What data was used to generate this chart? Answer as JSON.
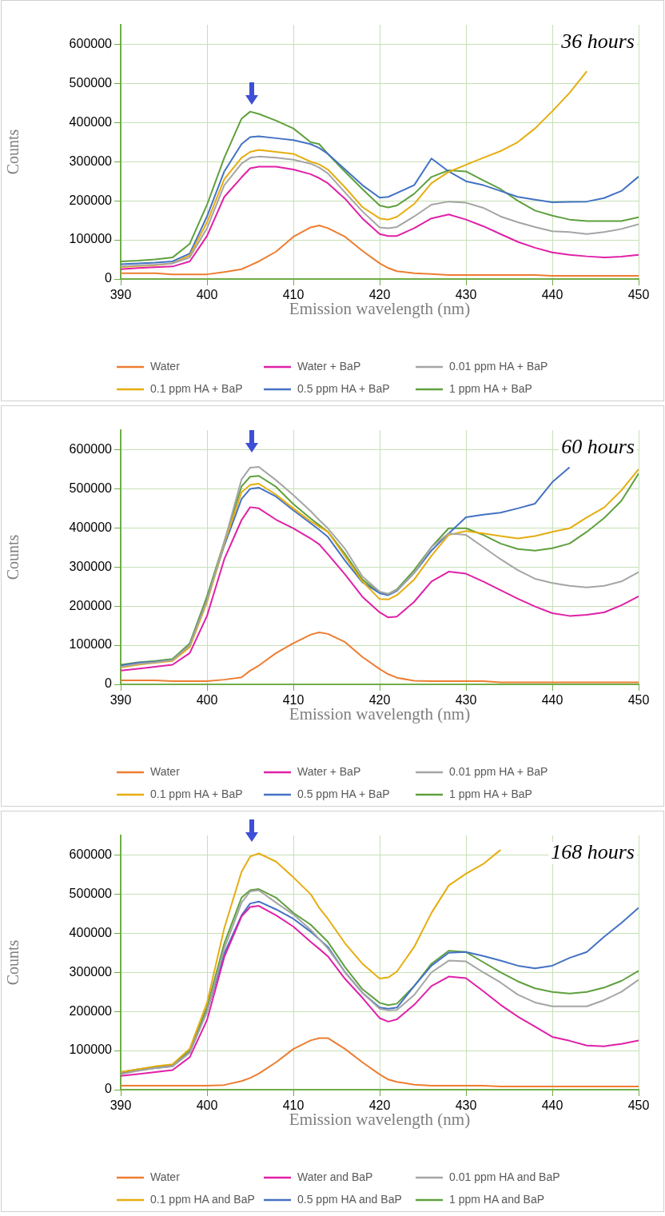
{
  "chart_data": [
    {
      "type": "line",
      "title": "36 hours",
      "xlabel": "Emission wavelength (nm)",
      "ylabel": "Counts",
      "xlim": [
        390,
        450
      ],
      "xticks": [
        390,
        400,
        410,
        420,
        430,
        440,
        450
      ],
      "ylim": [
        0,
        650000
      ],
      "yticks": [
        0,
        100000,
        200000,
        300000,
        400000,
        500000,
        600000
      ],
      "grid": true,
      "legend": "bottom",
      "x": [
        390,
        392,
        394,
        396,
        398,
        400,
        402,
        404,
        405,
        406,
        408,
        410,
        412,
        413,
        414,
        416,
        418,
        420,
        421,
        422,
        424,
        426,
        428,
        430,
        432,
        434,
        436,
        438,
        440,
        442,
        444,
        446,
        448,
        450
      ],
      "series": [
        {
          "name": "Water",
          "color": "#ed7d31",
          "values": [
            15000,
            15000,
            15000,
            12000,
            12000,
            12000,
            18000,
            25000,
            35000,
            45000,
            70000,
            108000,
            132000,
            137000,
            130000,
            108000,
            72000,
            40000,
            28000,
            20000,
            15000,
            13000,
            10000,
            10000,
            10000,
            10000,
            10000,
            10000,
            8000,
            8000,
            8000,
            8000,
            8000,
            8000
          ]
        },
        {
          "name": "Water + BaP",
          "color": "#e020a8",
          "values": [
            25000,
            28000,
            30000,
            32000,
            45000,
            110000,
            210000,
            260000,
            283000,
            287000,
            287000,
            280000,
            268000,
            258000,
            245000,
            205000,
            155000,
            115000,
            110000,
            110000,
            130000,
            155000,
            165000,
            152000,
            135000,
            115000,
            95000,
            80000,
            68000,
            62000,
            58000,
            55000,
            57000,
            62000
          ]
        },
        {
          "name": "0.01 ppm HA + BaP",
          "color": "#a5a5a5",
          "values": [
            32000,
            35000,
            37000,
            40000,
            55000,
            130000,
            240000,
            295000,
            310000,
            313000,
            310000,
            305000,
            295000,
            285000,
            270000,
            221000,
            173000,
            132000,
            130000,
            133000,
            160000,
            190000,
            198000,
            195000,
            182000,
            160000,
            145000,
            133000,
            122000,
            120000,
            115000,
            120000,
            128000,
            140000
          ]
        },
        {
          "name": "0.1 ppm HA + BaP",
          "color": "#e6ad10",
          "values": [
            30000,
            33000,
            35000,
            40000,
            60000,
            145000,
            255000,
            310000,
            325000,
            330000,
            325000,
            320000,
            300000,
            293000,
            280000,
            234000,
            184000,
            155000,
            152000,
            159000,
            192000,
            245000,
            274000,
            292000,
            310000,
            327000,
            350000,
            385000,
            429000,
            476000,
            531000,
            null,
            null,
            null
          ]
        },
        {
          "name": "0.5 ppm HA + BaP",
          "color": "#4472c4",
          "values": [
            38000,
            40000,
            42000,
            45000,
            65000,
            160000,
            275000,
            345000,
            363000,
            365000,
            360000,
            355000,
            345000,
            335000,
            320000,
            280000,
            240000,
            208000,
            210000,
            220000,
            240000,
            308000,
            275000,
            250000,
            240000,
            225000,
            210000,
            203000,
            196000,
            197000,
            198000,
            207000,
            225000,
            262000
          ]
        },
        {
          "name": "1 ppm HA + BaP",
          "color": "#5fa03e",
          "values": [
            45000,
            47000,
            50000,
            55000,
            90000,
            190000,
            310000,
            410000,
            428000,
            422000,
            405000,
            385000,
            350000,
            345000,
            320000,
            274000,
            230000,
            188000,
            183000,
            188000,
            218000,
            261000,
            278000,
            275000,
            252000,
            230000,
            200000,
            175000,
            162000,
            152000,
            148000,
            148000,
            148000,
            158000
          ]
        }
      ]
    },
    {
      "type": "line",
      "title": "60 hours",
      "xlabel": "Emission wavelength (nm)",
      "ylabel": "Counts",
      "xlim": [
        390,
        450
      ],
      "xticks": [
        390,
        400,
        410,
        420,
        430,
        440,
        450
      ],
      "ylim": [
        0,
        650000
      ],
      "yticks": [
        0,
        100000,
        200000,
        300000,
        400000,
        500000,
        600000
      ],
      "grid": true,
      "legend": "bottom",
      "x": [
        390,
        392,
        394,
        396,
        398,
        400,
        402,
        404,
        405,
        406,
        408,
        410,
        412,
        413,
        414,
        416,
        418,
        420,
        421,
        422,
        424,
        426,
        428,
        430,
        432,
        434,
        436,
        438,
        440,
        442,
        444,
        446,
        448,
        450
      ],
      "series": [
        {
          "name": "Water",
          "color": "#ed7d31",
          "values": [
            10000,
            10000,
            10000,
            8000,
            8000,
            8000,
            12000,
            18000,
            35000,
            48000,
            80000,
            105000,
            127000,
            133000,
            129000,
            108000,
            70000,
            39000,
            26000,
            17000,
            9000,
            8000,
            8000,
            8000,
            8000,
            5000,
            5000,
            5000,
            5000,
            5000,
            5000,
            5000,
            5000,
            5000
          ]
        },
        {
          "name": "Water + BaP",
          "color": "#e020a8",
          "values": [
            35000,
            40000,
            45000,
            50000,
            80000,
            175000,
            320000,
            420000,
            453000,
            450000,
            421000,
            399000,
            373000,
            358000,
            333000,
            281000,
            224000,
            184000,
            171000,
            173000,
            211000,
            263000,
            288000,
            283000,
            263000,
            241000,
            219000,
            199000,
            182000,
            175000,
            178000,
            184000,
            202000,
            225000
          ]
        },
        {
          "name": "0.01 ppm HA + BaP",
          "color": "#a5a5a5",
          "values": [
            45000,
            52000,
            56000,
            62000,
            100000,
            215000,
            364000,
            524000,
            554000,
            556000,
            522000,
            484000,
            443000,
            420000,
            399000,
            346000,
            276000,
            237000,
            231000,
            241000,
            285000,
            351000,
            386000,
            382000,
            351000,
            320000,
            292000,
            270000,
            259000,
            252000,
            248000,
            252000,
            263000,
            287000
          ]
        },
        {
          "name": "0.1 ppm HA + BaP",
          "color": "#e6ad10",
          "values": [
            43000,
            50000,
            55000,
            60000,
            95000,
            210000,
            360000,
            491000,
            510000,
            513000,
            485000,
            450000,
            417000,
            403000,
            390000,
            327000,
            263000,
            218000,
            217000,
            228000,
            268000,
            329000,
            382000,
            392000,
            386000,
            379000,
            373000,
            379000,
            390000,
            399000,
            427000,
            452000,
            496000,
            550000
          ]
        },
        {
          "name": "0.5 ppm HA + BaP",
          "color": "#4472c4",
          "values": [
            48000,
            55000,
            58000,
            62000,
            100000,
            215000,
            355000,
            474000,
            500000,
            503000,
            480000,
            445000,
            412000,
            395000,
            377000,
            316000,
            261000,
            233000,
            228000,
            239000,
            285000,
            342000,
            386000,
            427000,
            434000,
            439000,
            450000,
            462000,
            517000,
            555000,
            null,
            null,
            null,
            null
          ]
        },
        {
          "name": "1 ppm HA + BaP",
          "color": "#5fa03e",
          "values": [
            50000,
            56000,
            60000,
            65000,
            105000,
            225000,
            365000,
            506000,
            531000,
            533000,
            505000,
            461000,
            424000,
            407000,
            390000,
            333000,
            268000,
            234000,
            231000,
            243000,
            292000,
            351000,
            399000,
            399000,
            382000,
            360000,
            346000,
            342000,
            348000,
            360000,
            390000,
            425000,
            469000,
            539000
          ]
        }
      ]
    },
    {
      "type": "line",
      "title": "168 hours",
      "xlabel": "Emission wavelength (nm)",
      "ylabel": "Counts",
      "xlim": [
        390,
        450
      ],
      "xticks": [
        390,
        400,
        410,
        420,
        430,
        440,
        450
      ],
      "ylim": [
        0,
        650000
      ],
      "yticks": [
        0,
        100000,
        200000,
        300000,
        400000,
        500000,
        600000
      ],
      "grid": true,
      "legend": "bottom",
      "x": [
        390,
        392,
        394,
        396,
        398,
        400,
        402,
        404,
        405,
        406,
        408,
        410,
        412,
        413,
        414,
        416,
        418,
        420,
        421,
        422,
        424,
        426,
        428,
        430,
        432,
        434,
        436,
        438,
        440,
        442,
        444,
        446,
        448,
        450
      ],
      "series": [
        {
          "name": "Water",
          "color": "#ed7d31",
          "values": [
            10000,
            10000,
            10000,
            10000,
            10000,
            10000,
            12000,
            22000,
            30000,
            41000,
            70000,
            104000,
            126000,
            132000,
            132000,
            104000,
            70000,
            39000,
            26000,
            20000,
            13000,
            10000,
            10000,
            10000,
            10000,
            8000,
            8000,
            8000,
            8000,
            8000,
            8000,
            8000,
            8000,
            8000
          ]
        },
        {
          "name": "Water and BaP",
          "color": "#e020a8",
          "values": [
            35000,
            40000,
            45000,
            50000,
            83000,
            178000,
            339000,
            443000,
            467000,
            470000,
            446000,
            417000,
            378000,
            360000,
            341000,
            283000,
            235000,
            183000,
            174000,
            180000,
            217000,
            265000,
            289000,
            285000,
            252000,
            217000,
            187000,
            161000,
            135000,
            125000,
            113000,
            111000,
            117000,
            126000
          ]
        },
        {
          "name": "0.01 ppm HA and BaP",
          "color": "#a5a5a5",
          "values": [
            40000,
            48000,
            55000,
            60000,
            95000,
            200000,
            361000,
            478000,
            507000,
            510000,
            478000,
            448000,
            409000,
            385000,
            361000,
            300000,
            248000,
            207000,
            203000,
            204000,
            242000,
            300000,
            330000,
            328000,
            300000,
            274000,
            243000,
            223000,
            213000,
            213000,
            213000,
            229000,
            250000,
            281000
          ]
        },
        {
          "name": "0.1 ppm HA and BaP",
          "color": "#e6ad10",
          "values": [
            45000,
            52000,
            60000,
            65000,
            105000,
            222000,
            413000,
            557000,
            596000,
            604000,
            583000,
            543000,
            500000,
            465000,
            437000,
            374000,
            322000,
            284000,
            287000,
            302000,
            365000,
            452000,
            522000,
            552000,
            577000,
            613000,
            null,
            null,
            null,
            null,
            null,
            null,
            null,
            null
          ]
        },
        {
          "name": "0.5 ppm HA and BaP",
          "color": "#4472c4",
          "values": [
            42000,
            50000,
            55000,
            60000,
            95000,
            200000,
            348000,
            446000,
            476000,
            481000,
            461000,
            437000,
            404000,
            385000,
            365000,
            300000,
            248000,
            210000,
            207000,
            210000,
            265000,
            317000,
            350000,
            352000,
            342000,
            330000,
            317000,
            310000,
            317000,
            337000,
            352000,
            391000,
            426000,
            465000
          ]
        },
        {
          "name": "1 ppm HA and BaP",
          "color": "#5fa03e",
          "values": [
            45000,
            52000,
            58000,
            63000,
            100000,
            210000,
            374000,
            491000,
            510000,
            513000,
            491000,
            452000,
            422000,
            400000,
            378000,
            313000,
            257000,
            222000,
            216000,
            220000,
            265000,
            322000,
            355000,
            352000,
            326000,
            300000,
            277000,
            259000,
            250000,
            246000,
            250000,
            261000,
            278000,
            304000
          ]
        }
      ]
    }
  ]
}
